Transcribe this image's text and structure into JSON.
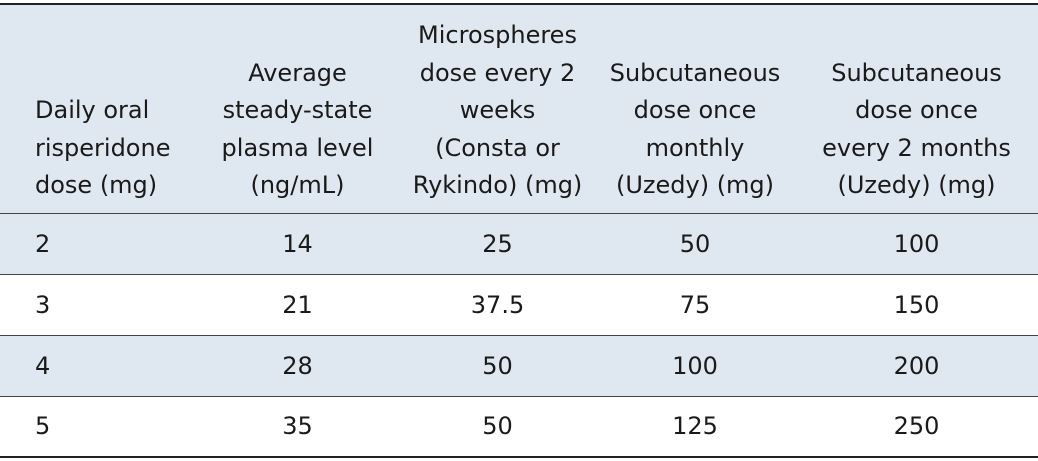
{
  "table": {
    "header": [
      [
        "Daily oral",
        "risperidone",
        "dose (mg)"
      ],
      [
        "Average",
        "steady-state",
        "plasma level",
        "(ng/mL)"
      ],
      [
        "Microspheres",
        "dose every 2",
        "weeks",
        "(Consta or",
        "Rykindo) (mg)"
      ],
      [
        "Subcutaneous",
        "dose once",
        "monthly",
        "(Uzedy) (mg)"
      ],
      [
        "Subcutaneous",
        "dose once",
        "every 2 months",
        "(Uzedy) (mg)"
      ]
    ],
    "rows": [
      [
        2,
        14,
        25,
        50,
        100
      ],
      [
        3,
        21,
        37.5,
        75,
        150
      ],
      [
        4,
        28,
        50,
        100,
        200
      ],
      [
        5,
        35,
        50,
        125,
        250
      ]
    ]
  }
}
